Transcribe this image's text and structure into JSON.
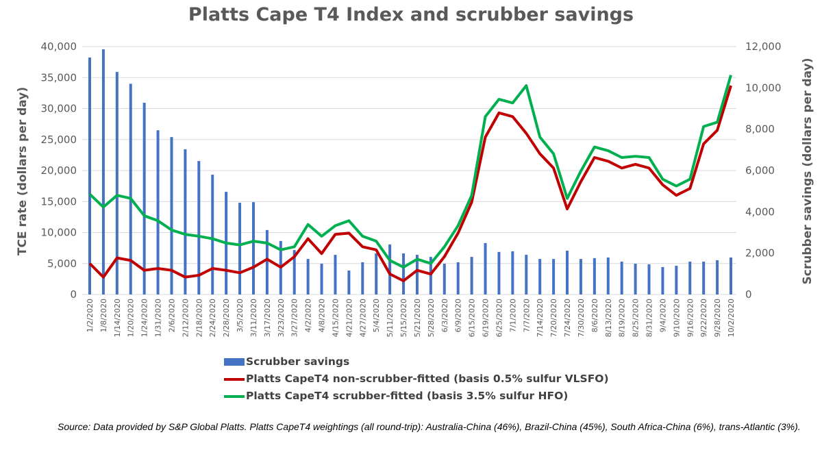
{
  "chart_data": {
    "type": "bar+line",
    "title": "Platts Cape T4 Index and scrubber savings",
    "ylabel": "TCE rate (dollars per day)",
    "y2label": "Scrubber savings (dollars per day)",
    "ylim": [
      0,
      40000
    ],
    "y2lim": [
      0,
      12000
    ],
    "yticks": [
      "0",
      "5,000",
      "10,000",
      "15,000",
      "20,000",
      "25,000",
      "30,000",
      "35,000",
      "40,000"
    ],
    "y2ticks": [
      "0",
      "2,000",
      "4,000",
      "6,000",
      "8,000",
      "10,000",
      "12,000"
    ],
    "grid": true,
    "legend_placement": "bottom",
    "categories": [
      "1/2/2020",
      "1/8/2020",
      "1/14/2020",
      "1/20/2020",
      "1/24/2020",
      "1/31/2020",
      "2/6/2020",
      "2/12/2020",
      "2/18/2020",
      "2/24/2020",
      "2/28/2020",
      "3/5/2020",
      "3/11/2020",
      "3/17/2020",
      "3/23/2020",
      "3/27/2020",
      "4/2/2020",
      "4/8/2020",
      "4/15/2020",
      "4/21/2020",
      "4/27/2020",
      "5/4/2020",
      "5/11/2020",
      "5/15/2020",
      "5/21/2020",
      "5/28/2020",
      "6/3/2020",
      "6/9/2020",
      "6/15/2020",
      "6/19/2020",
      "6/25/2020",
      "7/1/2020",
      "7/7/2020",
      "7/14/2020",
      "7/20/2020",
      "7/24/2020",
      "7/30/2020",
      "8/6/2020",
      "8/13/2020",
      "8/19/2020",
      "8/25/2020",
      "8/31/2020",
      "9/4/2020",
      "9/10/2020",
      "9/16/2020",
      "9/22/2020",
      "9/28/2020",
      "10/2/2020"
    ],
    "series": [
      {
        "name": "Scrubber savings",
        "type": "bar",
        "axis": "right",
        "color": "#4472c4",
        "values": [
          11470,
          11870,
          10770,
          10200,
          9280,
          7950,
          7620,
          7030,
          6460,
          5800,
          4970,
          4440,
          4470,
          3120,
          2590,
          2150,
          1720,
          1490,
          1920,
          1160,
          1560,
          1990,
          2420,
          1990,
          1920,
          1820,
          1490,
          1560,
          1820,
          2490,
          2060,
          2090,
          1920,
          1720,
          1720,
          2120,
          1720,
          1760,
          1790,
          1590,
          1490,
          1460,
          1330,
          1390,
          1590,
          1590,
          1660,
          1790
        ]
      },
      {
        "name": "Platts CapeT4 non-scrubber-fitted (basis 0.5% sulfur VLSFO)",
        "type": "line",
        "axis": "left",
        "color": "#c00000",
        "values": [
          5000,
          2800,
          5900,
          5500,
          3900,
          4200,
          3900,
          2800,
          3100,
          4200,
          3900,
          3500,
          4400,
          5700,
          4400,
          6100,
          9000,
          6600,
          9700,
          9900,
          7700,
          7200,
          3300,
          2200,
          3900,
          3300,
          6100,
          9900,
          14900,
          25400,
          29300,
          28700,
          26000,
          22700,
          20400,
          13800,
          18200,
          22100,
          21500,
          20400,
          21000,
          20400,
          17700,
          16000,
          17100,
          24300,
          26500,
          33700
        ]
      },
      {
        "name": "Platts CapeT4 scrubber-fitted (basis 3.5% sulfur HFO)",
        "type": "line",
        "axis": "left",
        "color": "#00b050",
        "values": [
          16200,
          14100,
          16000,
          15500,
          12700,
          11900,
          10400,
          9700,
          9400,
          9000,
          8300,
          8000,
          8600,
          8300,
          7200,
          7700,
          11300,
          9400,
          11100,
          11900,
          9400,
          8600,
          5500,
          4400,
          5700,
          5000,
          7700,
          11100,
          16000,
          28700,
          31500,
          30900,
          33700,
          25400,
          22700,
          15500,
          19900,
          23800,
          23200,
          22100,
          22300,
          22100,
          18600,
          17500,
          18600,
          27100,
          27800,
          35400
        ]
      }
    ]
  },
  "source": "Source: Data provided by S&P Global Platts. Platts CapeT4 weightings (all round-trip): Australia-China (46%), Brazil-China (45%), South Africa-China (6%), trans-Atlantic (3%)."
}
